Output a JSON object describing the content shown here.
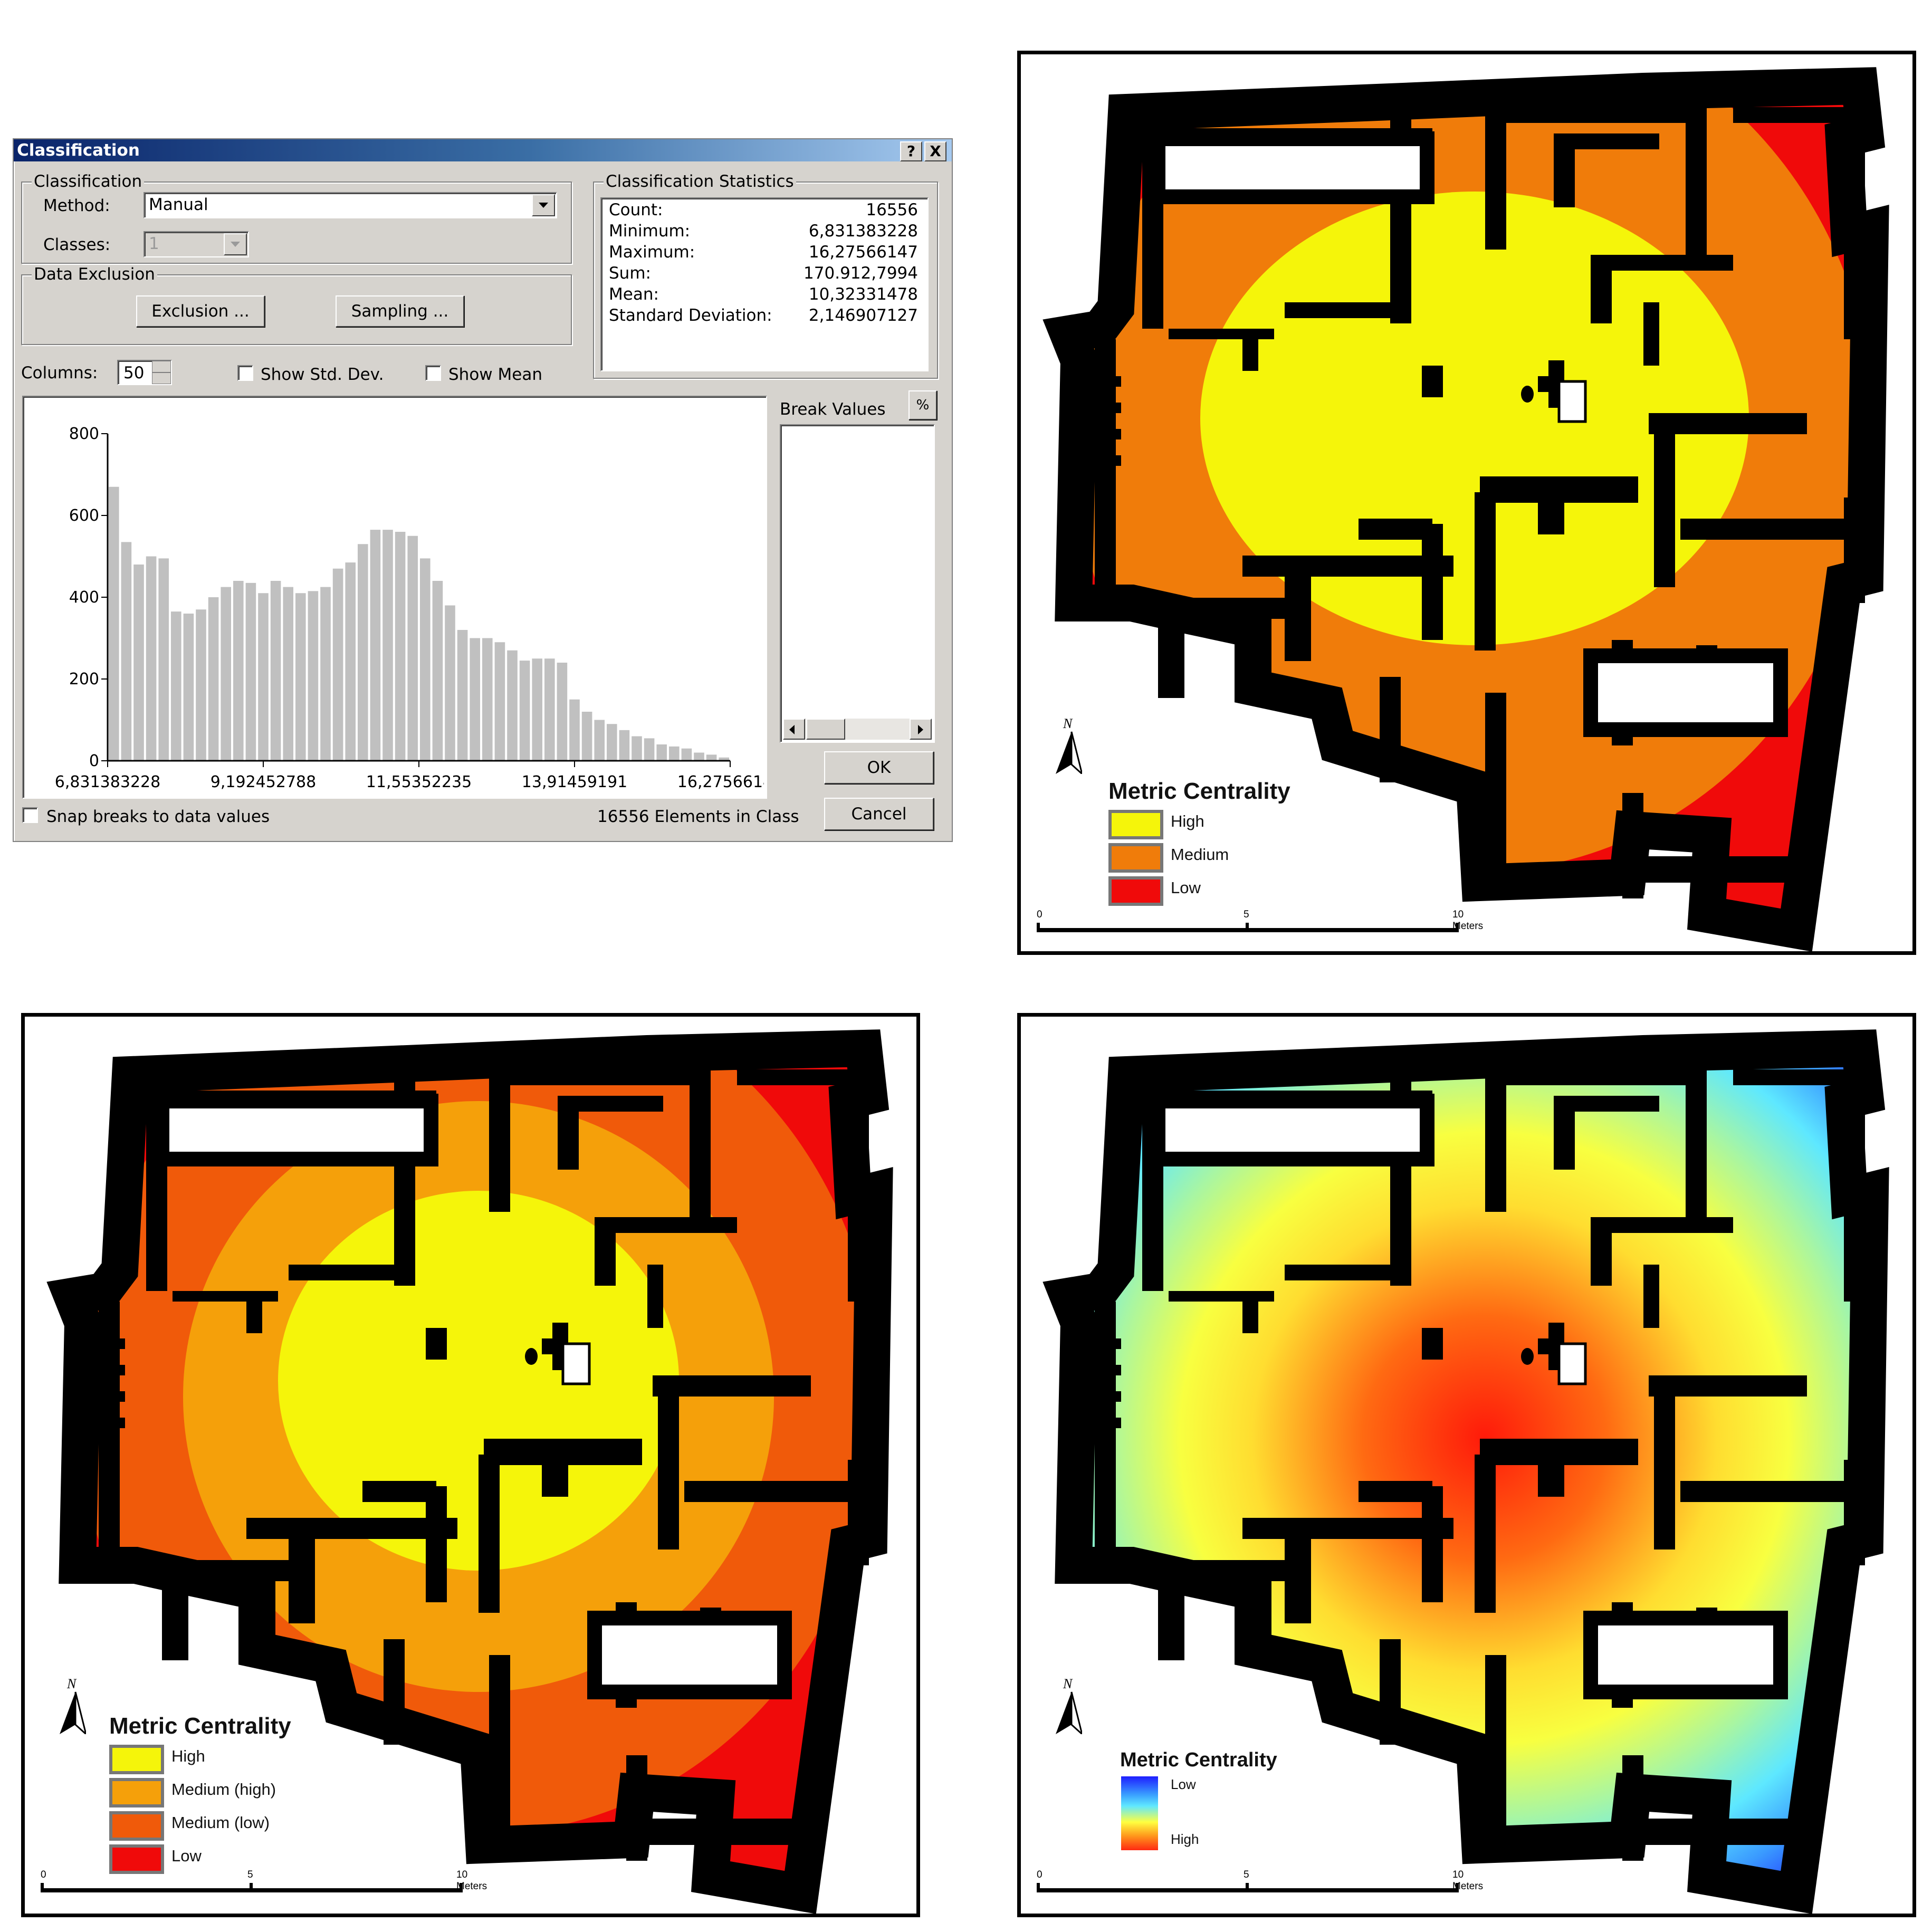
{
  "dialog": {
    "title": "Classification",
    "help_btn": "?",
    "close_btn": "X",
    "classification_group": "Classification",
    "method_label": "Method:",
    "method_value": "Manual",
    "classes_label": "Classes:",
    "classes_value": "1",
    "exclusion_group": "Data Exclusion",
    "exclusion_btn": "Exclusion ...",
    "sampling_btn": "Sampling ...",
    "stats_group": "Classification Statistics",
    "stats": [
      {
        "k": "Count:",
        "v": "16556"
      },
      {
        "k": "Minimum:",
        "v": "6,831383228"
      },
      {
        "k": "Maximum:",
        "v": "16,27566147"
      },
      {
        "k": "Sum:",
        "v": "170.912,7994"
      },
      {
        "k": "Mean:",
        "v": "10,32331478"
      },
      {
        "k": "Standard Deviation:",
        "v": "2,146907127"
      }
    ],
    "columns_label": "Columns:",
    "columns_value": "50",
    "show_std_dev": "Show Std. Dev.",
    "show_mean": "Show Mean",
    "break_values": "Break Values",
    "percent_btn": "%",
    "ok_btn": "OK",
    "cancel_btn": "Cancel",
    "snap_label": "Snap breaks to data values",
    "elements_label": "16556 Elements in Class"
  },
  "chart_data": {
    "type": "bar",
    "title": "",
    "xlabel": "",
    "ylabel": "",
    "ylim": [
      0,
      800
    ],
    "yticks": [
      "800",
      "600",
      "400",
      "200",
      "0"
    ],
    "xticks": [
      "6,831383228",
      "9,192452788",
      "11,55352235",
      "13,91459191",
      "16,27566147"
    ],
    "color": "#c0c0c0",
    "values": [
      670,
      535,
      480,
      500,
      495,
      365,
      360,
      370,
      400,
      425,
      440,
      435,
      410,
      440,
      425,
      410,
      415,
      425,
      470,
      485,
      530,
      565,
      565,
      560,
      550,
      495,
      440,
      380,
      320,
      300,
      300,
      290,
      270,
      245,
      250,
      250,
      240,
      150,
      120,
      100,
      90,
      75,
      60,
      55,
      40,
      35,
      30,
      20,
      15,
      8
    ]
  },
  "maps": {
    "top_right": {
      "legend_title": "Metric Centrality",
      "items": [
        {
          "label": "High",
          "color": "#f5f50a"
        },
        {
          "label": "Medium",
          "color": "#f07c0a"
        },
        {
          "label": "Low",
          "color": "#f00a0a"
        }
      ],
      "colors": {
        "outer": "#f00a0a",
        "mid": "#f07c0a",
        "core": "#f5f50a"
      }
    },
    "bottom_left": {
      "legend_title": "Metric Centrality",
      "items": [
        {
          "label": "High",
          "color": "#f5f50a"
        },
        {
          "label": "Medium (high)",
          "color": "#f5a00a"
        },
        {
          "label": "Medium (low)",
          "color": "#f05a0a"
        },
        {
          "label": "Low",
          "color": "#f00a0a"
        }
      ],
      "colors": {
        "outer": "#f00a0a",
        "mid": "#f05a0a",
        "inner": "#f5a00a",
        "core": "#f5f50a"
      }
    },
    "bottom_right": {
      "legend_title": "Metric Centrality",
      "low_label": "Low",
      "high_label": "High"
    },
    "north": "N",
    "scale_ticks": [
      "0",
      "5",
      "10 Meters"
    ]
  }
}
